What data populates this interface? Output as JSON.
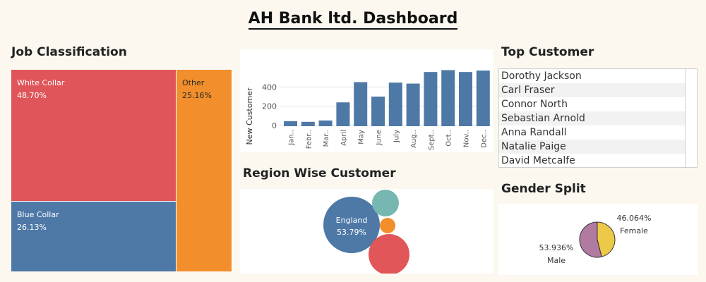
{
  "dashboard_title": "AH Bank ltd. Dashboard",
  "job": {
    "title": "Job Classification",
    "tiles": [
      {
        "label": "White Collar",
        "pct": "48.70%"
      },
      {
        "label": "Blue Collar",
        "pct": "26.13%"
      },
      {
        "label": "Other",
        "pct": "25.16%"
      }
    ],
    "colors": {
      "white_collar": "#e0555a",
      "blue_collar": "#4e79a7",
      "other": "#f28e2b"
    }
  },
  "chart_data": {
    "type": "bar",
    "ylabel": "New Customer",
    "xlabel": "",
    "ylim": [
      0,
      600
    ],
    "yticks": [
      0,
      200,
      400
    ],
    "categories": [
      "Jan..",
      "Febr..",
      "Mar..",
      "April",
      "May",
      "June",
      "July",
      "Aug..",
      "Sept..",
      "Oct..",
      "Nov..",
      "Dec.."
    ],
    "values": [
      45,
      38,
      52,
      240,
      450,
      300,
      445,
      435,
      555,
      575,
      555,
      570
    ],
    "color": "#4e79a7"
  },
  "top_customer": {
    "title": "Top Customer",
    "names": [
      "Dorothy Jackson",
      "Carl Fraser",
      "Connor North",
      "Sebastian Arnold",
      "Anna Randall",
      "Natalie Paige",
      "David Metcalfe"
    ]
  },
  "region": {
    "title": "Region Wise Customer",
    "main_label": "England",
    "main_pct": "53.79%",
    "colors": {
      "england": "#4e79a7",
      "teal": "#76b7b2",
      "orange": "#f28e2b",
      "red": "#e15759"
    }
  },
  "gender": {
    "title": "Gender Split",
    "female_pct": "46.064%",
    "female_label": "Female",
    "male_pct": "53.936%",
    "male_label": "Male",
    "female_value": 46.064,
    "male_value": 53.936,
    "colors": {
      "female": "#edc948",
      "male": "#b07aa1"
    }
  }
}
